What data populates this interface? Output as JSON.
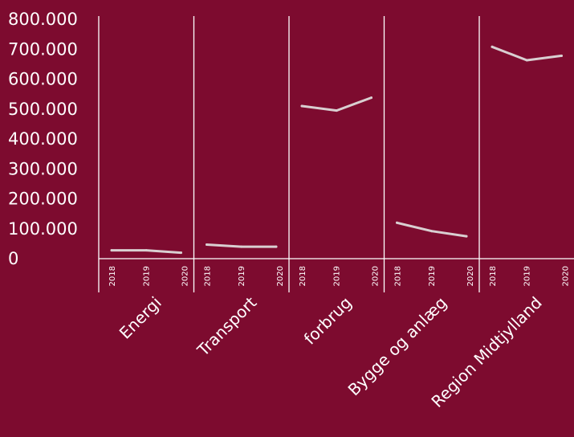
{
  "chart_data": {
    "type": "line",
    "title": "",
    "xlabel": "",
    "ylabel": "",
    "ylim": [
      0,
      800000
    ],
    "yticks": [
      0,
      100000,
      200000,
      300000,
      400000,
      500000,
      600000,
      700000,
      800000
    ],
    "ytick_labels": [
      "0",
      "100.000",
      "200.000",
      "300.000",
      "400.000",
      "500.000",
      "600.000",
      "700.000",
      "800.000"
    ],
    "x": [
      "2018",
      "2019",
      "2020"
    ],
    "grid": false,
    "legend": "none",
    "colors": {
      "background": "#7d0b2f",
      "line": "#d9cfd1",
      "axis": "#ffffff",
      "text": "#ffffff"
    },
    "panels": [
      {
        "label": "Energi",
        "values": [
          28000,
          28000,
          20000
        ]
      },
      {
        "label": "Transport",
        "values": [
          47000,
          40000,
          40000
        ]
      },
      {
        "label": "forbrug",
        "values": [
          510000,
          495000,
          538000
        ]
      },
      {
        "label": "Bygge og anlæg",
        "values": [
          120000,
          92000,
          75000
        ]
      },
      {
        "label": "Region Midtjylland",
        "values": [
          708000,
          663000,
          678000
        ]
      }
    ]
  }
}
